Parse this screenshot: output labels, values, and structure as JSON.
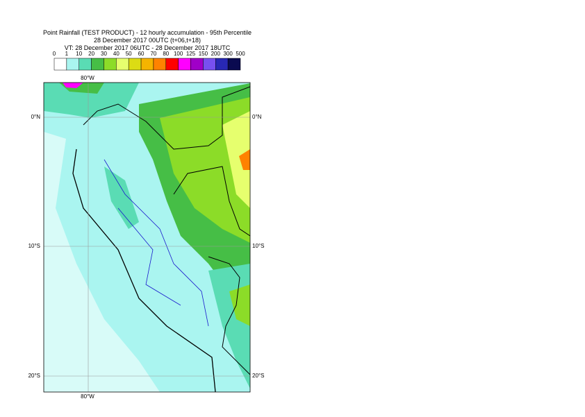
{
  "header": {
    "title": "Point Rainfall (TEST PRODUCT) - 12 hourly accumulation - 95th Percentile",
    "run": "28 December 2017 00UTC (t+06,t+18)",
    "valid": "VT: 28 December 2017 06UTC - 28 December 2017 18UTC"
  },
  "legend": {
    "labels": [
      0,
      1,
      10,
      20,
      30,
      40,
      50,
      60,
      70,
      80,
      100,
      125,
      150,
      200,
      300,
      500
    ],
    "colors": [
      "#ffffff",
      "#aaf5f0",
      "#5adcb4",
      "#46be46",
      "#8cdc28",
      "#e6ff6e",
      "#dcdc14",
      "#f5b400",
      "#ff8200",
      "#ff0000",
      "#ff00ff",
      "#a000c8",
      "#7850f0",
      "#2828b4",
      "#0a0a50"
    ]
  },
  "map": {
    "top_lon": "80°W",
    "bottom_lon": "80°W",
    "lat_left": [
      "0°N",
      "10°S",
      "20°S"
    ],
    "lat_right": [
      "0°N",
      "10°S",
      "20°S"
    ]
  }
}
